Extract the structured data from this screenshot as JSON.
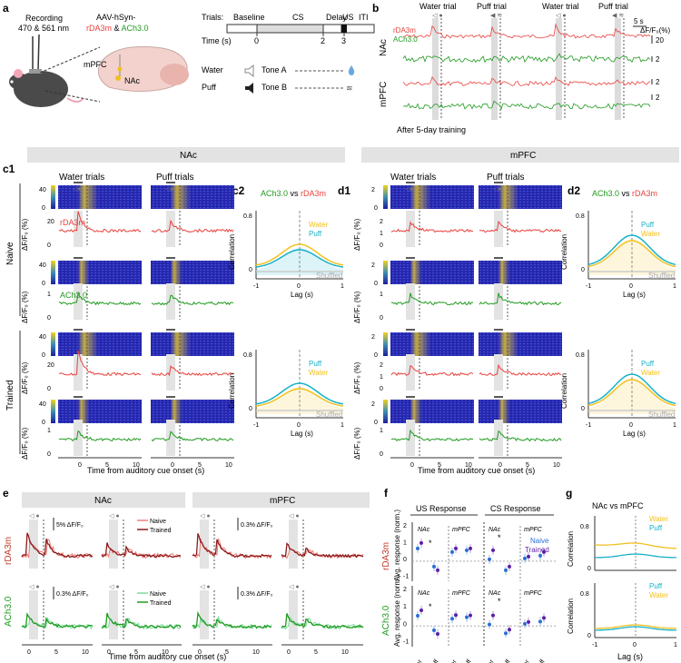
{
  "panel_a": {
    "label": "a",
    "recording_line1": "Recording",
    "recording_line2": "470 & 561 nm",
    "virus_line1": "AAV-hSyn-",
    "virus_red": "rDA3m",
    "virus_amp": " & ",
    "virus_green": "ACh3.0",
    "region_mpfc": "mPFC",
    "region_nac": "NAc",
    "trials_label": "Trials:",
    "time_label": "Time (s)",
    "phases": [
      "Baseline",
      "CS",
      "Delay",
      "US",
      "ITI"
    ],
    "time_ticks": [
      "0",
      "2",
      "3"
    ],
    "water_label": "Water",
    "water_tone": "Tone A",
    "puff_label": "Puff",
    "puff_tone": "Tone B"
  },
  "panel_b": {
    "label": "b",
    "trial_labels": [
      "Water trial",
      "Puff trial",
      "Water trial",
      "Puff trial"
    ],
    "time_scale": "5 s",
    "df_label": "ΔF/F₀(%)",
    "trace_red": "rDA3m",
    "trace_green": "ACh3.0",
    "row_labels": [
      "NAc",
      "mPFC"
    ],
    "scale_values": [
      "20",
      "2",
      "2",
      "2"
    ],
    "footer": "After 5-day training"
  },
  "section_headers": [
    "NAc",
    "mPFC"
  ],
  "panel_c": {
    "label_c1": "c1",
    "label_c2": "c2",
    "label_d1": "d1",
    "label_d2": "d2",
    "col_headers": [
      "Water trials",
      "Puff trials"
    ],
    "group_labels": [
      "Naive",
      "Trained"
    ],
    "heat_max_a": "40",
    "heat_max_b": "2",
    "heat_min": "0",
    "y_axis_label": "ΔF/F₀ (%)",
    "c1_trace_red": "rDA3m",
    "c1_trace_green": "ACh3.0",
    "x_ticks": [
      "0",
      "5",
      "10"
    ],
    "x_axis_label": "Time from auditory cue onset (s)",
    "c1_y_ticks_red": [
      "20",
      "0"
    ],
    "c1_y_ticks_green": [
      "1",
      "0"
    ],
    "d1_y_ticks_red": [
      "2",
      "1",
      "0"
    ],
    "d1_y_ticks_green": [
      "1",
      "0"
    ],
    "corr_title_green": "ACh3.0",
    "corr_title_vs": " vs ",
    "corr_title_red": "rDA3m",
    "corr_y_label": "Correlation",
    "corr_x_label": "Lag (s)",
    "corr_x_ticks": [
      "-1",
      "0",
      "1"
    ],
    "corr_y_ticks": [
      "0.8",
      "0"
    ],
    "legend_water": "Water",
    "legend_puff": "Puff",
    "shuffled": "Shuffled"
  },
  "panel_e": {
    "label": "e",
    "headers": [
      "NAc",
      "mPFC"
    ],
    "row_labels": [
      "rDA3m",
      "ACh3.0"
    ],
    "scale_labels": [
      "5% ΔF/F₀",
      "0.3% ΔF/F₀",
      "0.3% ΔF/F₀",
      "0.3% ΔF/F₀"
    ],
    "legend_naive": "Naive",
    "legend_trained": "Trained",
    "x_ticks": [
      "0",
      "5",
      "10"
    ],
    "x_axis_label": "Time from auditory cue onset (s)"
  },
  "panel_f": {
    "label": "f",
    "headers": [
      "US Response",
      "CS Response"
    ],
    "y_label": "Avg. response (norm.)",
    "row_labels": [
      "rDA3m",
      "ACh3.0"
    ],
    "y_ticks": [
      "2",
      "1",
      "0",
      "-1"
    ],
    "region_nac": "NAc",
    "region_mpfc": "mPFC",
    "x_labels": [
      "Water",
      "Puff",
      "Water",
      "Puff",
      "Water",
      "Puff",
      "Water",
      "Puff"
    ],
    "legend_naive": "Naive",
    "legend_trained": "Trained",
    "star": "*"
  },
  "panel_g": {
    "label": "g",
    "title": "NAc vs mPFC",
    "y_label": "Correlation",
    "y_ticks": [
      "0.8",
      "0"
    ],
    "x_ticks": [
      "-1",
      "0",
      "1"
    ],
    "x_label": "Lag (s)",
    "legend_top": [
      "Water",
      "Puff"
    ],
    "legend_bottom": [
      "Puff",
      "Water"
    ]
  },
  "colors": {
    "red": "#e8413c",
    "dark_red": "#8b1a1a",
    "green": "#1f9a1f",
    "light_green": "#3ccf6b",
    "cyan": "#16b1c8",
    "yellow": "#f2c01e",
    "blue": "#2a6fd6",
    "purple": "#5b1fa8",
    "gray": "#bdbdbd",
    "heat_bg": "#2b2bb8"
  }
}
